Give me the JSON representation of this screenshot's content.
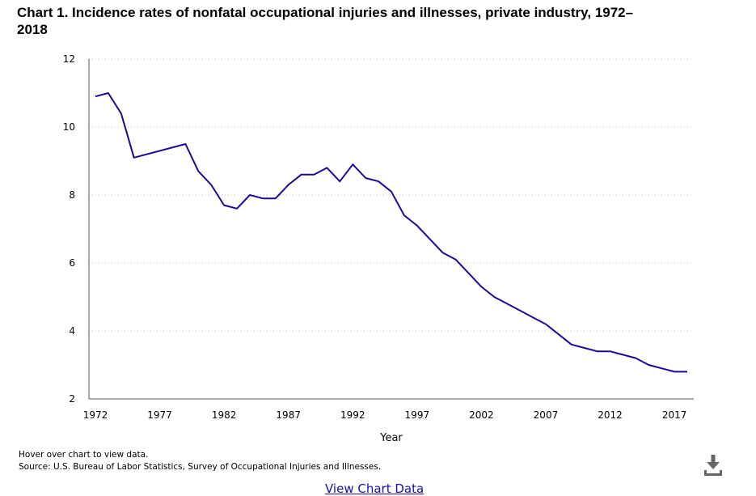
{
  "title": "Chart 1. Incidence rates of nonfatal occupational injuries and illnesses, private industry, 1972–2018",
  "notes": {
    "hover": "Hover over chart to view data.",
    "source": "Source: U.S. Bureau of Labor Statistics, Survey of Occupational Injuries and Illnesses."
  },
  "links": {
    "view_chart_data": "View Chart Data"
  },
  "icons": {
    "download": "download-icon"
  },
  "colors": {
    "line": "#1a0a99",
    "grid": "#b8b8b8",
    "axis": "#555555",
    "link": "#1a0dab"
  },
  "chart_data": {
    "type": "line",
    "title": "Chart 1. Incidence rates of nonfatal occupational injuries and illnesses, private industry, 1972–2018",
    "xlabel": "Year",
    "ylabel": "",
    "xlim": [
      1972,
      2018
    ],
    "ylim": [
      2,
      12
    ],
    "x_ticks": [
      1972,
      1977,
      1982,
      1987,
      1992,
      1997,
      2002,
      2007,
      2012,
      2017
    ],
    "y_ticks": [
      2,
      4,
      6,
      8,
      10,
      12
    ],
    "grid": true,
    "legend": "none",
    "series": [
      {
        "x": [
          1972,
          1973,
          1974,
          1975,
          1979,
          1980,
          1981,
          1982,
          1983,
          1984,
          1985,
          1986,
          1987,
          1988,
          1989,
          1990,
          1991,
          1992,
          1993,
          1994,
          1995,
          1996,
          1997,
          1998,
          1999,
          2000,
          2001,
          2002,
          2003,
          2004,
          2005,
          2006,
          2007,
          2008,
          2009,
          2010,
          2011,
          2012,
          2013,
          2014,
          2015,
          2016,
          2017,
          2018
        ],
        "values": [
          10.9,
          11.0,
          10.4,
          9.1,
          9.5,
          8.7,
          8.3,
          7.7,
          7.6,
          8.0,
          7.9,
          7.9,
          8.3,
          8.6,
          8.6,
          8.8,
          8.4,
          8.9,
          8.5,
          8.4,
          8.1,
          7.4,
          7.1,
          6.7,
          6.3,
          6.1,
          5.7,
          5.3,
          5.0,
          4.8,
          4.6,
          4.4,
          4.2,
          3.9,
          3.6,
          3.5,
          3.4,
          3.4,
          3.3,
          3.2,
          3.0,
          2.9,
          2.8,
          2.8
        ]
      }
    ]
  }
}
